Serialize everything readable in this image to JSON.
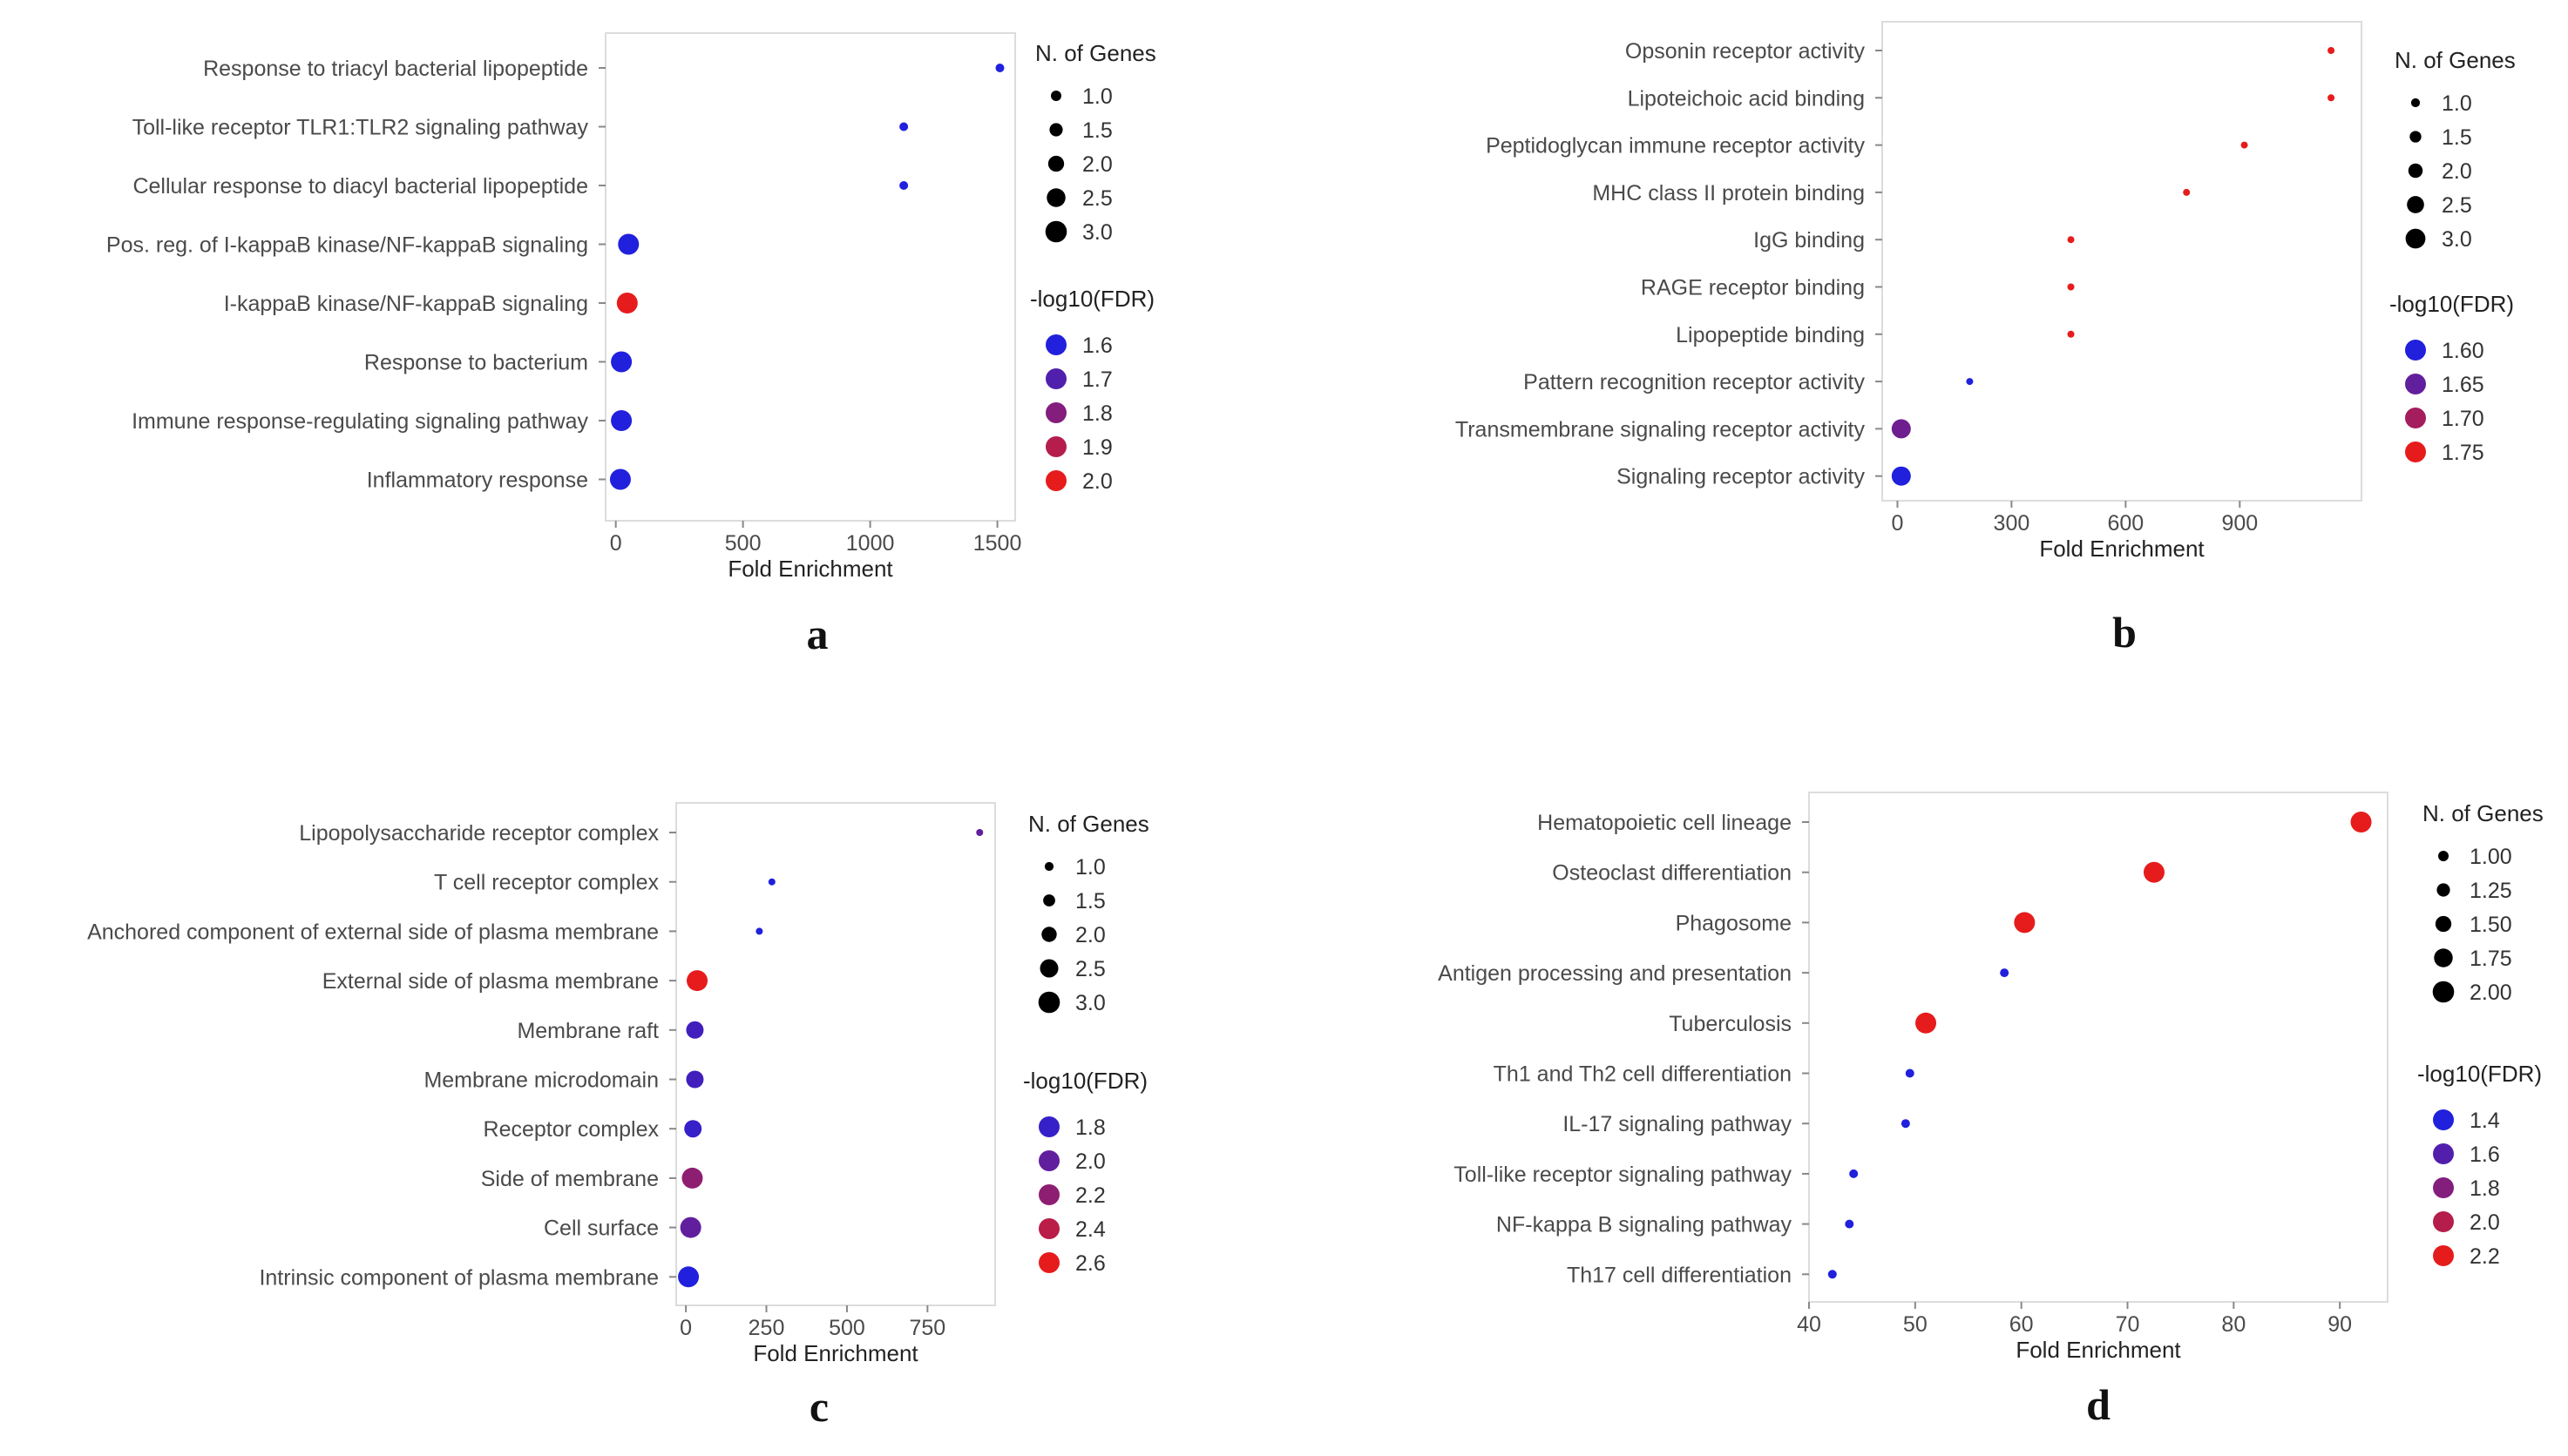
{
  "figure": {
    "panels": [
      "a",
      "b",
      "c",
      "d"
    ]
  },
  "chart_data": [
    {
      "id": "a",
      "panel_label": "a",
      "type": "scatter",
      "title": "",
      "xlabel": "Fold Enrichment",
      "ylabel": "",
      "xlim": [
        -40,
        1570
      ],
      "xticks": [
        0,
        500,
        1000,
        1500
      ],
      "categories": [
        "Response to triacyl bacterial lipopeptide",
        "Toll-like receptor TLR1:TLR2 signaling pathway",
        "Cellular response to diacyl bacterial lipopeptide",
        "Pos. reg. of I-kappaB kinase/NF-kappaB signaling",
        "I-kappaB kinase/NF-kappaB signaling",
        "Response to bacterium",
        "Immune response-regulating signaling pathway",
        "Inflammatory response"
      ],
      "fold_enrichment": [
        1510,
        1132,
        1132,
        50,
        45,
        22,
        22,
        18
      ],
      "genes": [
        1,
        1,
        1,
        3,
        3,
        3,
        3,
        3
      ],
      "log10fdr": [
        1.6,
        1.6,
        1.6,
        1.6,
        2.0,
        1.6,
        1.6,
        1.6
      ],
      "size_legend": {
        "title": "N. of Genes",
        "values": [
          "1.0",
          "1.5",
          "2.0",
          "2.5",
          "3.0"
        ]
      },
      "color_legend": {
        "title": "-log10(FDR)",
        "values": [
          "1.6",
          "1.7",
          "1.8",
          "1.9",
          "2.0"
        ]
      },
      "color_range": [
        1.6,
        2.0
      ],
      "size_range": [
        1,
        3
      ],
      "colors": {
        "low": "#2020dd",
        "high": "#e61c1c"
      }
    },
    {
      "id": "b",
      "panel_label": "b",
      "type": "scatter",
      "title": "",
      "xlabel": "Fold Enrichment",
      "ylabel": "",
      "xlim": [
        -40,
        1220
      ],
      "xticks": [
        0,
        300,
        600,
        900
      ],
      "categories": [
        "Opsonin receptor activity",
        "Lipoteichoic acid binding",
        "Peptidoglycan immune receptor activity",
        "MHC class II protein binding",
        "IgG binding",
        "RAGE receptor binding",
        "Lipopeptide binding",
        "Pattern recognition receptor activity",
        "Transmembrane signaling receptor activity",
        "Signaling receptor activity"
      ],
      "fold_enrichment": [
        1140,
        1140,
        912,
        760,
        456,
        456,
        456,
        190,
        10,
        10
      ],
      "genes": [
        1,
        1,
        1,
        1,
        1,
        1,
        1,
        1,
        3,
        3
      ],
      "log10fdr": [
        1.75,
        1.75,
        1.75,
        1.75,
        1.75,
        1.75,
        1.75,
        1.6,
        1.66,
        1.6
      ],
      "size_legend": {
        "title": "N. of Genes",
        "values": [
          "1.0",
          "1.5",
          "2.0",
          "2.5",
          "3.0"
        ]
      },
      "color_legend": {
        "title": "-log10(FDR)",
        "values": [
          "1.60",
          "1.65",
          "1.70",
          "1.75"
        ]
      },
      "color_range": [
        1.6,
        1.75
      ],
      "size_range": [
        1,
        3
      ],
      "colors": {
        "low": "#2020dd",
        "high": "#e61c1c"
      }
    },
    {
      "id": "c",
      "panel_label": "c",
      "type": "scatter",
      "title": "",
      "xlabel": "Fold Enrichment",
      "ylabel": "",
      "xlim": [
        -30,
        960
      ],
      "xticks": [
        0,
        250,
        500,
        750
      ],
      "categories": [
        "Lipopolysaccharide receptor complex",
        "T cell receptor complex",
        "Anchored component of external side of plasma membrane",
        "External side of plasma membrane",
        "Membrane raft",
        "Membrane microdomain",
        "Receptor complex",
        "Side of membrane",
        "Cell surface",
        "Intrinsic component of plasma membrane"
      ],
      "fold_enrichment": [
        912,
        267,
        228,
        35,
        28,
        28,
        22,
        20,
        15,
        8
      ],
      "genes": [
        1,
        1,
        1,
        3,
        2.5,
        2.5,
        2.5,
        3,
        3,
        3
      ],
      "log10fdr": [
        2.0,
        1.7,
        1.7,
        2.6,
        1.85,
        1.85,
        1.8,
        2.2,
        2.0,
        1.6
      ],
      "size_legend": {
        "title": "N. of Genes",
        "values": [
          "1.0",
          "1.5",
          "2.0",
          "2.5",
          "3.0"
        ]
      },
      "color_legend": {
        "title": "-log10(FDR)",
        "values": [
          "1.8",
          "2.0",
          "2.2",
          "2.4",
          "2.6"
        ]
      },
      "color_range": [
        1.7,
        2.6
      ],
      "size_range": [
        1,
        3
      ],
      "colors": {
        "low": "#2020dd",
        "high": "#e61c1c"
      }
    },
    {
      "id": "d",
      "panel_label": "d",
      "type": "scatter",
      "title": "",
      "xlabel": "Fold Enrichment",
      "ylabel": "",
      "xlim": [
        40,
        94.5
      ],
      "xticks": [
        40,
        50,
        60,
        70,
        80,
        90
      ],
      "categories": [
        "Hematopoietic cell lineage",
        "Osteoclast differentiation",
        "Phagosome",
        "Antigen processing and presentation",
        "Tuberculosis",
        "Th1 and Th2 cell differentiation",
        "IL-17 signaling pathway",
        "Toll-like receptor signaling pathway",
        "NF-kappa B signaling pathway",
        "Th17 cell differentiation"
      ],
      "fold_enrichment": [
        92,
        72.5,
        60.3,
        58.4,
        51,
        49.5,
        49.1,
        44.2,
        43.8,
        42.2
      ],
      "genes": [
        2,
        2,
        2,
        1,
        2,
        1,
        1,
        1,
        1,
        1
      ],
      "log10fdr": [
        2.2,
        2.2,
        2.2,
        1.4,
        2.2,
        1.4,
        1.4,
        1.4,
        1.4,
        1.4
      ],
      "size_legend": {
        "title": "N. of Genes",
        "values": [
          "1.00",
          "1.25",
          "1.50",
          "1.75",
          "2.00"
        ]
      },
      "color_legend": {
        "title": "-log10(FDR)",
        "values": [
          "1.4",
          "1.6",
          "1.8",
          "2.0",
          "2.2"
        ]
      },
      "color_range": [
        1.4,
        2.2
      ],
      "size_range": [
        1,
        2
      ],
      "colors": {
        "low": "#2020dd",
        "high": "#e61c1c"
      }
    }
  ]
}
